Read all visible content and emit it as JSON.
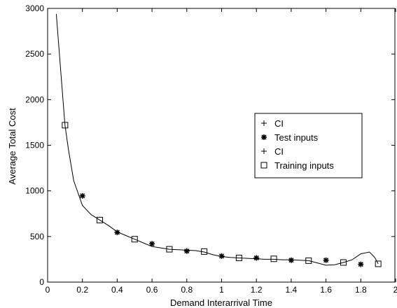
{
  "chart_data": {
    "type": "scatter",
    "xlabel": "Demand Interarrival Time",
    "ylabel": "Average Total Cost",
    "xlim": [
      0,
      2
    ],
    "ylim": [
      0,
      3000
    ],
    "x_ticks": [
      "0",
      "0.2",
      "0.4",
      "0.6",
      "0.8",
      "1",
      "1.2",
      "1.4",
      "1.6",
      "1.8",
      "2"
    ],
    "y_ticks": [
      "0",
      "500",
      "1000",
      "1500",
      "2000",
      "2500",
      "3000"
    ],
    "grid": false,
    "legend_position": "right",
    "legend": [
      {
        "label": "CI",
        "marker": "plus"
      },
      {
        "label": "Test inputs",
        "marker": "star"
      },
      {
        "label": "CI",
        "marker": "plus"
      },
      {
        "label": "Training inputs",
        "marker": "square"
      }
    ],
    "series": [
      {
        "kind": "line",
        "x": [
          0.05,
          0.08,
          0.1,
          0.12,
          0.15,
          0.2,
          0.25,
          0.3,
          0.35,
          0.4,
          0.45,
          0.5,
          0.55,
          0.6,
          0.65,
          0.7,
          0.75,
          0.8,
          0.85,
          0.9,
          0.95,
          1.0,
          1.05,
          1.1,
          1.15,
          1.2,
          1.25,
          1.3,
          1.35,
          1.4,
          1.45,
          1.5,
          1.55,
          1.6,
          1.65,
          1.7,
          1.75,
          1.8,
          1.85,
          1.88,
          1.9
        ],
        "y": [
          2940,
          2200,
          1720,
          1450,
          1110,
          840,
          740,
          680,
          620,
          550,
          510,
          470,
          430,
          390,
          375,
          360,
          355,
          350,
          345,
          330,
          300,
          280,
          270,
          265,
          260,
          255,
          250,
          250,
          245,
          245,
          240,
          235,
          210,
          185,
          190,
          215,
          245,
          310,
          330,
          270,
          200
        ]
      },
      {
        "name": "Test inputs",
        "kind": "markers",
        "marker": "star",
        "x": [
          0.2,
          0.4,
          0.6,
          0.8,
          1.0,
          1.2,
          1.4,
          1.6,
          1.8
        ],
        "y": [
          945,
          545,
          420,
          340,
          285,
          265,
          240,
          240,
          195
        ]
      },
      {
        "name": "Training inputs",
        "kind": "markers",
        "marker": "square",
        "x": [
          0.1,
          0.3,
          0.5,
          0.7,
          0.9,
          1.1,
          1.3,
          1.5,
          1.7,
          1.9
        ],
        "y": [
          1720,
          680,
          470,
          360,
          335,
          265,
          255,
          235,
          215,
          200
        ]
      }
    ]
  }
}
